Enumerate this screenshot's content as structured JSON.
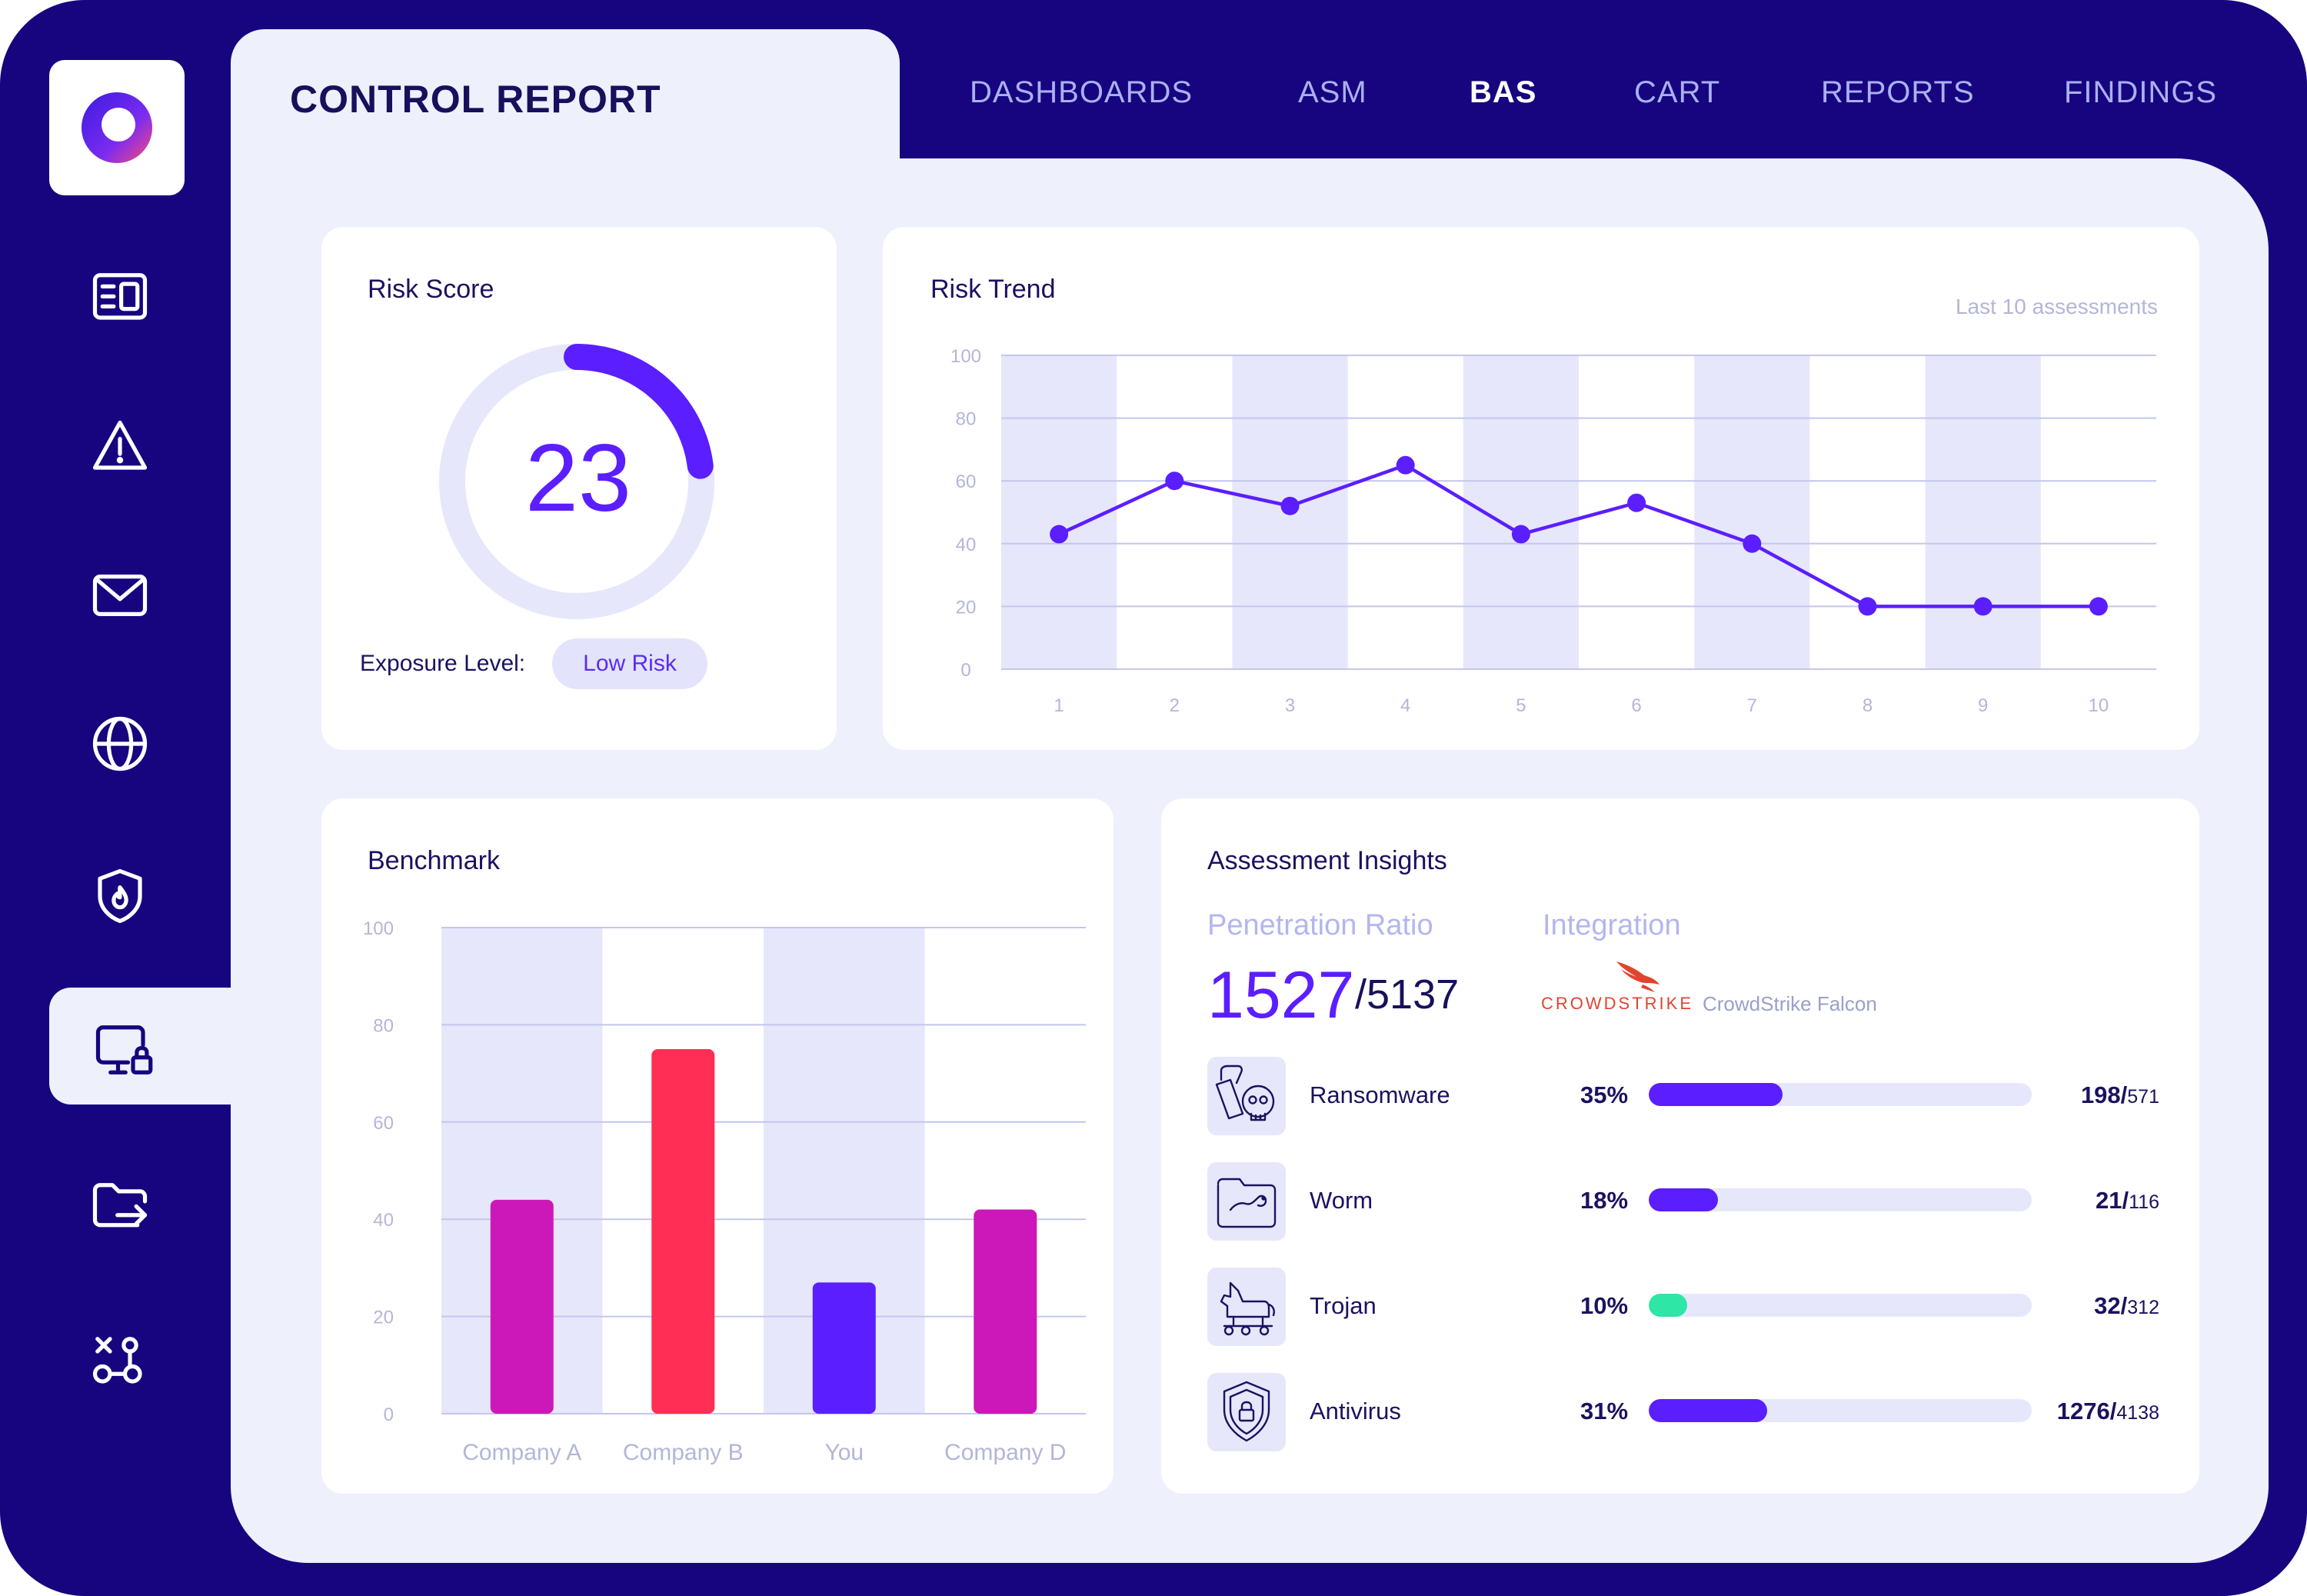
{
  "app": {
    "logo": "logo-icon",
    "page_title": "CONTROL REPORT"
  },
  "nav": {
    "tabs": [
      {
        "label": "DASHBOARDS",
        "active": false
      },
      {
        "label": "ASM",
        "active": false
      },
      {
        "label": "BAS",
        "active": true
      },
      {
        "label": "CART",
        "active": false
      },
      {
        "label": "REPORTS",
        "active": false
      },
      {
        "label": "FINDINGS",
        "active": false
      }
    ]
  },
  "sidebar": {
    "items": [
      {
        "icon": "dashboard-panel-icon",
        "active": false
      },
      {
        "icon": "warning-icon",
        "active": false
      },
      {
        "icon": "mail-icon",
        "active": false
      },
      {
        "icon": "globe-icon",
        "active": false
      },
      {
        "icon": "shield-flame-icon",
        "active": false
      },
      {
        "icon": "monitor-lock-icon",
        "active": true
      },
      {
        "icon": "folder-export-icon",
        "active": false
      },
      {
        "icon": "workflow-icon",
        "active": false
      }
    ]
  },
  "risk_score": {
    "title": "Risk Score",
    "value": "23",
    "exposure_label": "Exposure Level:",
    "exposure_value": "Low Risk"
  },
  "risk_trend": {
    "title": "Risk Trend",
    "subtitle": "Last 10 assessments"
  },
  "benchmark": {
    "title": "Benchmark"
  },
  "insights": {
    "title": "Assessment Insights",
    "penetration_label": "Penetration Ratio",
    "penetration_value": "1527",
    "penetration_total": "/5137",
    "integration_label": "Integration",
    "integration_brand": "CROWDSTRIKE",
    "integration_name": "CrowdStrike Falcon",
    "threats": [
      {
        "name": "Ransomware",
        "pct": "35%",
        "fill": 0.35,
        "count": "198/",
        "total": "571",
        "color": "#5b1eff",
        "icon": "ransomware-skull-icon"
      },
      {
        "name": "Worm",
        "pct": "18%",
        "fill": 0.18,
        "count": "21/",
        "total": "116",
        "color": "#5b1eff",
        "icon": "worm-icon"
      },
      {
        "name": "Trojan",
        "pct": "10%",
        "fill": 0.1,
        "count": "32/",
        "total": "312",
        "color": "#2ee6a6",
        "icon": "trojan-horse-icon"
      },
      {
        "name": "Antivirus",
        "pct": "31%",
        "fill": 0.31,
        "count": "1276/",
        "total": "4138",
        "color": "#5b1eff",
        "icon": "antivirus-shield-icon"
      }
    ]
  },
  "colors": {
    "frame": "#16057f",
    "panel": "#eef0fc",
    "accent": "#5b1eff",
    "magenta": "#cc18b8",
    "red": "#ff2e55",
    "green": "#2ee6a6"
  },
  "chart_data": [
    {
      "type": "gauge",
      "title": "Risk Score",
      "value": 23,
      "max": 100
    },
    {
      "type": "line",
      "title": "Risk Trend",
      "subtitle": "Last 10 assessments",
      "x": [
        1,
        2,
        3,
        4,
        5,
        6,
        7,
        8,
        9,
        10
      ],
      "series": [
        {
          "values": [
            43,
            60,
            52,
            65,
            43,
            53,
            40,
            20,
            20,
            20
          ]
        }
      ],
      "ylim": [
        0,
        100
      ],
      "yticks": [
        0,
        20,
        40,
        60,
        80,
        100
      ],
      "grid": true
    },
    {
      "type": "bar",
      "title": "Benchmark",
      "categories": [
        "Company A",
        "Company B",
        "You",
        "Company D"
      ],
      "values": [
        44,
        75,
        27,
        42
      ],
      "colors": [
        "#cc18b8",
        "#ff2e55",
        "#5b1eff",
        "#cc18b8"
      ],
      "ylim": [
        0,
        100
      ],
      "yticks": [
        0,
        20,
        40,
        60,
        80,
        100
      ],
      "grid": true
    }
  ]
}
